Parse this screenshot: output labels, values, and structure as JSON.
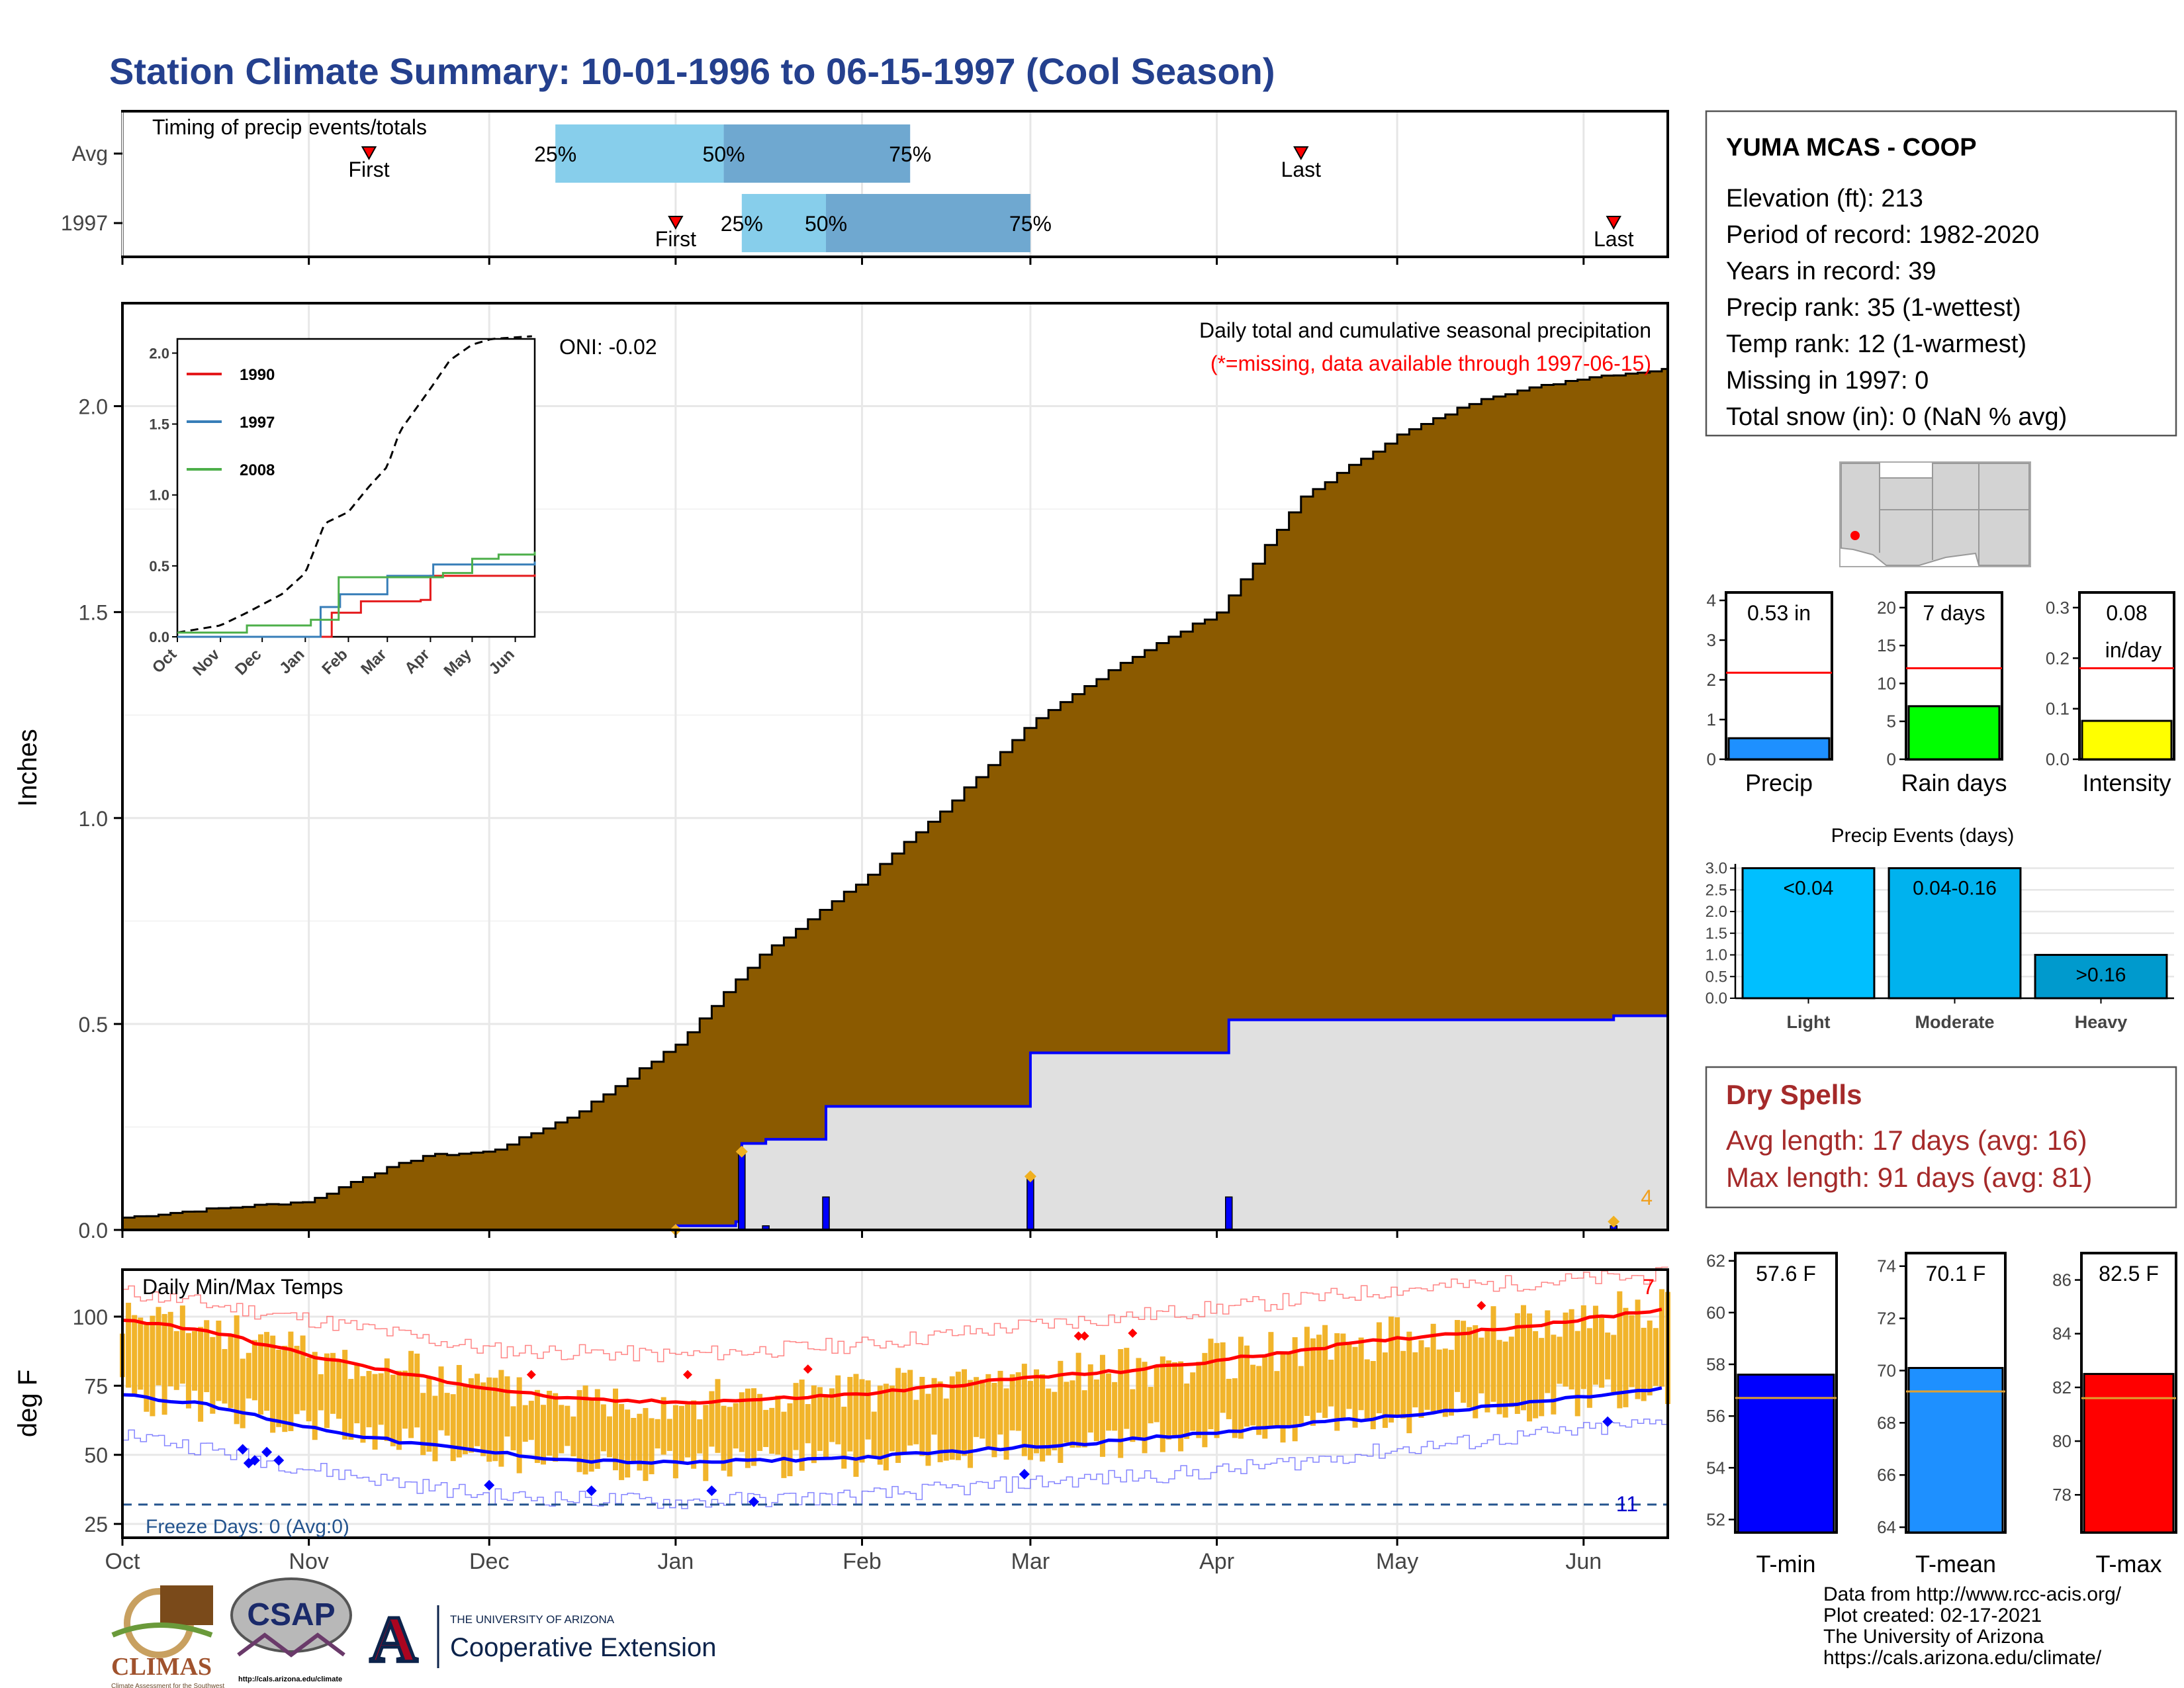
{
  "page": {
    "title": "Station Climate Summary: 10-01-1996 to 06-15-1997 (Cool Season)",
    "footer_credit": [
      "Data from http://www.rcc-acis.org/",
      "Plot created: 02-17-2021",
      "The University of Arizona",
      "https://cals.arizona.edu/climate/"
    ]
  },
  "logos": {
    "climas": "CLIMAS",
    "climas_sub": "Climate Assessment for the Southwest",
    "csap": "CSAP",
    "csap_url": "http://cals.arizona.edu/climate",
    "ua_letter": "A",
    "ua_line1": "THE UNIVERSITY OF ARIZONA",
    "ua_line2": "Cooperative Extension"
  },
  "colors": {
    "title": "#24408e",
    "precip_fill": "#8b5a00",
    "precip_light": "#e0e0e0",
    "blue": "#0000ff",
    "red": "#ff0000",
    "orange": "#f0b020",
    "dry": "#a52a2a",
    "lightblue": "#87ceeb",
    "midblue": "#6fa8d0",
    "green": "#00ff00",
    "yellow": "#ffff00"
  },
  "station": {
    "name": "YUMA MCAS - COOP",
    "lines": [
      "Elevation (ft): 213",
      "Period of record: 1982-2020",
      "Years in record: 39",
      "Precip rank: 35 (1-wettest)",
      "Temp rank: 12 (1-warmest)",
      "Missing in 1997: 0",
      "Total snow (in): 0 (NaN % avg)"
    ]
  },
  "dry_spells": {
    "title": "Dry Spells",
    "avg": "Avg length: 17 days (avg: 16)",
    "max": "Max length: 91 days (avg: 81)"
  },
  "timing": {
    "title": "Timing of precip events/totals",
    "rows": [
      "Avg",
      "1997"
    ],
    "avg": {
      "first": "1996-11-11",
      "p25": "1996-12-12",
      "p50": "1997-01-09",
      "p75": "1997-02-09",
      "last": "1997-04-15"
    },
    "y1997": {
      "first": "1997-01-01",
      "p25": "1997-01-12",
      "p50": "1997-01-26",
      "p75": "1997-03-01",
      "last": "1997-06-06"
    },
    "labels": {
      "first": "First",
      "last": "Last",
      "p25": "25%",
      "p50": "50%",
      "p75": "75%"
    }
  },
  "chart_data": [
    {
      "type": "area",
      "id": "precip",
      "title": "Daily total and cumulative seasonal precipitation",
      "subtitle": "(*=missing, data available through 1997-06-15)",
      "oni": "ONI: -0.02",
      "ylabel": "Inches",
      "ylim": [
        0,
        2.25
      ],
      "yticks": [
        0.0,
        0.5,
        1.0,
        1.5,
        2.0
      ],
      "x_range": [
        "1996-10-01",
        "1997-06-15"
      ],
      "month_labels": [
        "Oct",
        "Nov",
        "Dec",
        "Jan",
        "Feb",
        "Mar",
        "Apr",
        "May",
        "Jun"
      ],
      "corner_label": "4",
      "avg_cumulative": [
        [
          "1996-10-01",
          0.03
        ],
        [
          "1996-10-15",
          0.05
        ],
        [
          "1996-11-01",
          0.07
        ],
        [
          "1996-11-10",
          0.13
        ],
        [
          "1996-11-20",
          0.18
        ],
        [
          "1996-12-01",
          0.19
        ],
        [
          "1996-12-15",
          0.28
        ],
        [
          "1997-01-01",
          0.45
        ],
        [
          "1997-01-15",
          0.67
        ],
        [
          "1997-02-01",
          0.85
        ],
        [
          "1997-02-15",
          1.03
        ],
        [
          "1997-03-01",
          1.23
        ],
        [
          "1997-03-15",
          1.37
        ],
        [
          "1997-04-01",
          1.5
        ],
        [
          "1997-04-15",
          1.78
        ],
        [
          "1997-05-01",
          1.93
        ],
        [
          "1997-05-15",
          2.02
        ],
        [
          "1997-06-01",
          2.07
        ],
        [
          "1997-06-15",
          2.09
        ]
      ],
      "series": [
        {
          "name": "1997 cumulative",
          "values": [
            [
              "1996-10-01",
              0.0
            ],
            [
              "1997-01-01",
              0.01
            ],
            [
              "1997-01-11",
              0.02
            ],
            [
              "1997-01-12",
              0.21
            ],
            [
              "1997-01-16",
              0.22
            ],
            [
              "1997-01-26",
              0.3
            ],
            [
              "1997-03-01",
              0.43
            ],
            [
              "1997-04-03",
              0.51
            ],
            [
              "1997-06-06",
              0.52
            ],
            [
              "1997-06-15",
              0.53
            ]
          ]
        }
      ],
      "daily_bars": [
        [
          "1997-01-12",
          0.19
        ],
        [
          "1997-01-16",
          0.01
        ],
        [
          "1997-01-26",
          0.08
        ],
        [
          "1997-03-01",
          0.13
        ],
        [
          "1997-04-03",
          0.08
        ],
        [
          "1997-06-06",
          0.01
        ]
      ],
      "markers": [
        [
          "1997-01-01",
          0.0
        ],
        [
          "1997-01-12",
          0.19
        ],
        [
          "1997-03-01",
          0.13
        ],
        [
          "1997-06-06",
          0.02
        ]
      ]
    },
    {
      "type": "line",
      "id": "inset",
      "ylim": [
        0,
        2.1
      ],
      "yticks": [
        0.0,
        0.5,
        1.0,
        1.5,
        2.0
      ],
      "month_labels": [
        "Oct",
        "Nov",
        "Dec",
        "Jan",
        "Feb",
        "Mar",
        "Apr",
        "May",
        "Jun"
      ],
      "avg": [
        [
          "1996-10-01",
          0.03
        ],
        [
          "1996-11-01",
          0.08
        ],
        [
          "1996-11-20",
          0.17
        ],
        [
          "1996-12-15",
          0.3
        ],
        [
          "1997-01-01",
          0.45
        ],
        [
          "1997-01-15",
          0.8
        ],
        [
          "1997-02-01",
          0.88
        ],
        [
          "1997-02-15",
          1.05
        ],
        [
          "1997-03-01",
          1.2
        ],
        [
          "1997-03-10",
          1.45
        ],
        [
          "1997-04-01",
          1.75
        ],
        [
          "1997-04-15",
          1.95
        ],
        [
          "1997-05-01",
          2.06
        ],
        [
          "1997-05-15",
          2.1
        ],
        [
          "1997-06-15",
          2.12
        ]
      ],
      "series": [
        {
          "name": "1990",
          "color": "#e41a1c",
          "values": [
            [
              "1996-10-01",
              0.0
            ],
            [
              "1996-12-20",
              0.0
            ],
            [
              "1997-01-10",
              0.0
            ],
            [
              "1997-01-20",
              0.17
            ],
            [
              "1997-02-10",
              0.25
            ],
            [
              "1997-03-25",
              0.26
            ],
            [
              "1997-04-01",
              0.43
            ],
            [
              "1997-06-15",
              0.44
            ]
          ]
        },
        {
          "name": "1997",
          "color": "#377eb8",
          "values": [
            [
              "1996-10-01",
              0.0
            ],
            [
              "1997-01-12",
              0.21
            ],
            [
              "1997-01-26",
              0.3
            ],
            [
              "1997-03-01",
              0.43
            ],
            [
              "1997-04-03",
              0.51
            ],
            [
              "1997-06-15",
              0.53
            ]
          ]
        },
        {
          "name": "2008",
          "color": "#4daf4a",
          "values": [
            [
              "1996-10-01",
              0.03
            ],
            [
              "1996-11-20",
              0.08
            ],
            [
              "1997-01-05",
              0.12
            ],
            [
              "1997-01-25",
              0.42
            ],
            [
              "1997-04-10",
              0.45
            ],
            [
              "1997-05-01",
              0.55
            ],
            [
              "1997-05-20",
              0.58
            ],
            [
              "1997-06-15",
              0.6
            ]
          ]
        }
      ]
    },
    {
      "type": "bar",
      "id": "temps",
      "title": "Daily Min/Max Temps",
      "ylabel": "deg F",
      "ylim": [
        20,
        117
      ],
      "yticks": [
        25,
        50,
        75,
        100
      ],
      "month_labels": [
        "Oct",
        "Nov",
        "Dec",
        "Jan",
        "Feb",
        "Mar",
        "Apr",
        "May",
        "Jun"
      ],
      "freeze_label": "Freeze Days: 0 (Avg:0)",
      "freeze_temp": 32,
      "corner_top": "7",
      "corner_bottom": "11",
      "normal_max": [
        [
          "1996-10-01",
          99
        ],
        [
          "1996-10-15",
          95
        ],
        [
          "1996-11-01",
          86
        ],
        [
          "1996-11-15",
          80
        ],
        [
          "1996-12-01",
          74
        ],
        [
          "1996-12-15",
          70
        ],
        [
          "1997-01-01",
          69
        ],
        [
          "1997-01-15",
          70
        ],
        [
          "1997-02-01",
          72
        ],
        [
          "1997-02-15",
          75
        ],
        [
          "1997-03-01",
          78
        ],
        [
          "1997-03-15",
          80
        ],
        [
          "1997-04-01",
          84
        ],
        [
          "1997-04-15",
          88
        ],
        [
          "1997-05-01",
          92
        ],
        [
          "1997-05-15",
          95
        ],
        [
          "1997-06-01",
          99
        ],
        [
          "1997-06-15",
          103
        ]
      ],
      "normal_min": [
        [
          "1996-10-01",
          72
        ],
        [
          "1996-10-15",
          68
        ],
        [
          "1996-11-01",
          60
        ],
        [
          "1996-11-15",
          55
        ],
        [
          "1996-12-01",
          51
        ],
        [
          "1996-12-15",
          48
        ],
        [
          "1997-01-01",
          47
        ],
        [
          "1997-01-15",
          48
        ],
        [
          "1997-02-01",
          49
        ],
        [
          "1997-02-15",
          51
        ],
        [
          "1997-03-01",
          53
        ],
        [
          "1997-03-15",
          55
        ],
        [
          "1997-04-01",
          58
        ],
        [
          "1997-04-15",
          61
        ],
        [
          "1997-05-01",
          64
        ],
        [
          "1997-05-15",
          67
        ],
        [
          "1997-06-01",
          71
        ],
        [
          "1997-06-15",
          74
        ]
      ],
      "record_max": [
        [
          "1996-10-01",
          109
        ],
        [
          "1996-11-01",
          99
        ],
        [
          "1996-12-01",
          88
        ],
        [
          "1997-01-01",
          86
        ],
        [
          "1997-02-01",
          90
        ],
        [
          "1997-03-01",
          97
        ],
        [
          "1997-04-01",
          103
        ],
        [
          "1997-05-01",
          110
        ],
        [
          "1997-06-15",
          115
        ]
      ],
      "record_min": [
        [
          "1996-10-01",
          58
        ],
        [
          "1996-11-01",
          45
        ],
        [
          "1996-12-01",
          35
        ],
        [
          "1997-01-01",
          33
        ],
        [
          "1997-02-01",
          35
        ],
        [
          "1997-03-01",
          40
        ],
        [
          "1997-04-01",
          44
        ],
        [
          "1997-05-01",
          52
        ],
        [
          "1997-06-15",
          62
        ]
      ],
      "record_high_markers": [
        [
          "1996-12-08",
          79
        ],
        [
          "1997-01-03",
          79
        ],
        [
          "1997-01-23",
          81
        ],
        [
          "1997-03-09",
          93
        ],
        [
          "1997-03-10",
          93
        ],
        [
          "1997-03-18",
          94
        ],
        [
          "1997-05-15",
          104
        ]
      ],
      "record_low_markers": [
        [
          "1996-10-21",
          52
        ],
        [
          "1996-10-22",
          47
        ],
        [
          "1996-10-23",
          48
        ],
        [
          "1996-10-25",
          51
        ],
        [
          "1996-10-27",
          48
        ],
        [
          "1996-12-01",
          39
        ],
        [
          "1996-12-18",
          37
        ],
        [
          "1997-01-07",
          37
        ],
        [
          "1997-01-14",
          33
        ],
        [
          "1997-02-28",
          43
        ],
        [
          "1997-06-05",
          62
        ]
      ]
    },
    {
      "type": "bar",
      "id": "precip_total",
      "label": "Precip",
      "value_label": "0.53 in",
      "value": 0.53,
      "avg": 2.18,
      "ylim": [
        0,
        4.2
      ],
      "yticks": [
        0,
        1,
        2,
        3,
        4
      ],
      "fill": "#1e90ff"
    },
    {
      "type": "bar",
      "id": "rain_days",
      "label": "Rain days",
      "value_label": "7 days",
      "value": 7,
      "avg": 12,
      "ylim": [
        0,
        22
      ],
      "yticks": [
        0,
        5,
        10,
        15,
        20
      ],
      "fill": "#00ff00"
    },
    {
      "type": "bar",
      "id": "intensity",
      "label": "Intensity",
      "value_label": "0.08",
      "value_label2": "in/day",
      "value": 0.076,
      "avg": 0.18,
      "ylim": [
        0,
        0.33
      ],
      "yticks": [
        0.0,
        0.1,
        0.2,
        0.3
      ],
      "fill": "#ffff00"
    },
    {
      "type": "bar",
      "id": "events",
      "title": "Precip Events (days)",
      "categories": [
        "Light",
        "Moderate",
        "Heavy"
      ],
      "bar_labels": [
        "<0.04",
        "0.04-0.16",
        ">0.16"
      ],
      "values": [
        3,
        3,
        1
      ],
      "fills": [
        "#00bfff",
        "#00b2ee",
        "#009acd"
      ],
      "ylim": [
        0,
        3.1
      ],
      "yticks": [
        0.0,
        0.5,
        1.0,
        1.5,
        2.0,
        2.5,
        3.0
      ]
    },
    {
      "type": "bar",
      "id": "tmin",
      "label": "T-min",
      "value_label": "57.6 F",
      "value": 57.6,
      "avg": 56.7,
      "ylim": [
        51.5,
        62.3
      ],
      "yticks": [
        52,
        54,
        56,
        58,
        60,
        62
      ],
      "fill": "#0000ff"
    },
    {
      "type": "bar",
      "id": "tmean",
      "label": "T-mean",
      "value_label": "70.1 F",
      "value": 70.1,
      "avg": 69.2,
      "ylim": [
        63.8,
        74.5
      ],
      "yticks": [
        64,
        66,
        68,
        70,
        72,
        74
      ],
      "fill": "#1e90ff"
    },
    {
      "type": "bar",
      "id": "tmax",
      "label": "T-max",
      "value_label": "82.5 F",
      "value": 82.5,
      "avg": 81.6,
      "ylim": [
        76.6,
        87.0
      ],
      "yticks": [
        78,
        80,
        82,
        84,
        86
      ],
      "fill": "#ff0000"
    }
  ]
}
